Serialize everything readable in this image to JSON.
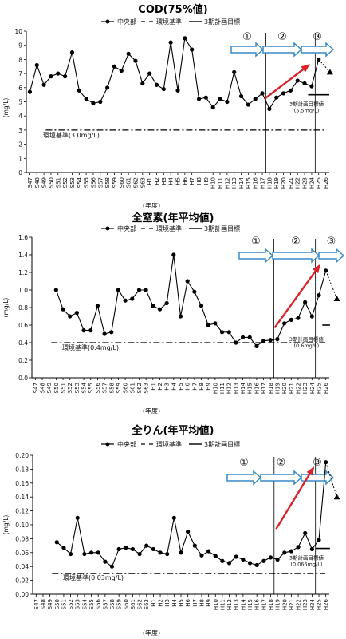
{
  "chart_data": [
    {
      "type": "line",
      "title": "COD(75%値)",
      "ylabel": "(mg/L)",
      "xlabel": "(年度)",
      "ylim": [
        0,
        10
      ],
      "yticks": [
        0,
        1,
        2,
        3,
        4,
        5,
        6,
        7,
        8,
        9,
        10
      ],
      "grid": false,
      "legend_position": "top",
      "legend": [
        "中央部",
        "環境基準",
        "3期計画目標"
      ],
      "categories": [
        "S47",
        "S48",
        "S49",
        "S50",
        "S51",
        "S52",
        "S53",
        "S54",
        "S55",
        "S56",
        "S57",
        "S58",
        "S59",
        "S60",
        "S61",
        "S62",
        "S63",
        "H1",
        "H2",
        "H3",
        "H4",
        "H5",
        "H6",
        "H7",
        "H8",
        "H9",
        "H10",
        "H11",
        "H12",
        "H13",
        "H14",
        "H15",
        "H16",
        "H17",
        "H18",
        "H19",
        "H20",
        "H21",
        "H22",
        "H23",
        "H24",
        "H25",
        "H26"
      ],
      "series": [
        {
          "name": "中央部",
          "values": [
            5.7,
            7.6,
            6.2,
            6.8,
            7.0,
            6.8,
            8.5,
            5.8,
            5.2,
            4.9,
            5.0,
            6.0,
            7.5,
            7.2,
            8.4,
            7.9,
            6.3,
            7.0,
            6.2,
            5.9,
            9.2,
            5.8,
            9.5,
            8.7,
            5.2,
            5.3,
            4.6,
            5.2,
            5.0,
            7.1,
            5.4,
            4.8,
            5.2,
            5.6,
            4.5,
            5.3,
            5.6,
            5.8,
            6.5,
            6.3,
            6.1,
            8.0,
            null
          ]
        }
      ],
      "reference": {
        "name": "環境基準",
        "value": 3.0,
        "label": "環境基準(3.0mg/L)"
      },
      "target": {
        "name": "3期計画目標",
        "value": 5.5,
        "label": "3期計画目標値",
        "sublabel": "(5.5mg/L)"
      },
      "projection": {
        "from": 8.0,
        "to": 7.1
      },
      "periods": [
        "①",
        "②",
        "③"
      ]
    },
    {
      "type": "line",
      "title": "全窒素(年平均値)",
      "ylabel": "(mg/L)",
      "xlabel": "(年度)",
      "ylim": [
        0,
        1.6
      ],
      "yticks": [
        0,
        0.2,
        0.4,
        0.6,
        0.8,
        1.0,
        1.2,
        1.4,
        1.6
      ],
      "grid": false,
      "legend_position": "top",
      "legend": [
        "中央部",
        "環境基準",
        "3期計画目標"
      ],
      "categories": [
        "S47",
        "S48",
        "S49",
        "S50",
        "S51",
        "S52",
        "S53",
        "S54",
        "S55",
        "S56",
        "S57",
        "S58",
        "S59",
        "S60",
        "S61",
        "S62",
        "S63",
        "H1",
        "H2",
        "H3",
        "H4",
        "H5",
        "H6",
        "H7",
        "H8",
        "H9",
        "H10",
        "H11",
        "H12",
        "H13",
        "H14",
        "H15",
        "H16",
        "H17",
        "H18",
        "H19",
        "H20",
        "H21",
        "H22",
        "H23",
        "H24",
        "H25",
        "H26"
      ],
      "series": [
        {
          "name": "中央部",
          "values": [
            null,
            null,
            null,
            1.0,
            0.78,
            0.7,
            0.74,
            0.54,
            0.54,
            0.82,
            0.5,
            0.52,
            1.0,
            0.88,
            0.9,
            1.0,
            1.0,
            0.82,
            0.78,
            0.85,
            1.4,
            0.7,
            1.1,
            0.98,
            0.82,
            0.6,
            0.62,
            0.52,
            0.52,
            0.4,
            0.46,
            0.46,
            0.36,
            0.42,
            0.43,
            0.44,
            0.62,
            0.66,
            0.68,
            0.86,
            0.7,
            0.94,
            1.22
          ]
        }
      ],
      "reference": {
        "name": "環境基準",
        "value": 0.4,
        "label": "環境基準(0.4mg/L)"
      },
      "target": {
        "name": "3期計画目標",
        "value": 0.6,
        "label": "3期計画目標値",
        "sublabel": "(0.6mg/L)"
      },
      "projection": {
        "from": 1.22,
        "to": 0.9
      },
      "periods": [
        "①",
        "②",
        "③"
      ]
    },
    {
      "type": "line",
      "title": "全りん(年平均値)",
      "ylabel": "(mg/L)",
      "xlabel": "(年度)",
      "ylim": [
        0,
        0.2
      ],
      "yticks": [
        0,
        0.02,
        0.04,
        0.06,
        0.08,
        0.1,
        0.12,
        0.14,
        0.16,
        0.18,
        0.2
      ],
      "grid": false,
      "legend_position": "top",
      "legend": [
        "中央部",
        "環境基準",
        "3期計画目標"
      ],
      "categories": [
        "S47",
        "S48",
        "S49",
        "S50",
        "S51",
        "S52",
        "S53",
        "S54",
        "S55",
        "S56",
        "S57",
        "S58",
        "S59",
        "S60",
        "S61",
        "S62",
        "S63",
        "H1",
        "H2",
        "H3",
        "H4",
        "H5",
        "H6",
        "H7",
        "H8",
        "H9",
        "H10",
        "H11",
        "H12",
        "H13",
        "H14",
        "H15",
        "H16",
        "H17",
        "H18",
        "H19",
        "H20",
        "H21",
        "H22",
        "H23",
        "H24",
        "H25",
        "H26"
      ],
      "series": [
        {
          "name": "中央部",
          "values": [
            null,
            null,
            null,
            0.075,
            0.067,
            0.058,
            0.11,
            0.058,
            0.06,
            0.06,
            0.047,
            0.04,
            0.065,
            0.067,
            0.065,
            0.058,
            0.07,
            0.065,
            0.06,
            0.058,
            0.11,
            0.06,
            0.09,
            0.07,
            0.056,
            0.062,
            0.055,
            0.048,
            0.045,
            0.054,
            0.05,
            0.045,
            0.042,
            0.048,
            0.053,
            0.05,
            0.06,
            0.062,
            0.068,
            0.088,
            0.065,
            0.078,
            0.19
          ]
        }
      ],
      "reference": {
        "name": "環境基準",
        "value": 0.03,
        "label": "環境基準(0.03mg/L)"
      },
      "target": {
        "name": "3期計画目標",
        "value": 0.066,
        "label": "3期計画目標値",
        "sublabel": "(0.066mg/L)"
      },
      "projection": {
        "from": 0.19,
        "to": 0.14
      },
      "periods": [
        "①",
        "②",
        "③"
      ]
    }
  ]
}
